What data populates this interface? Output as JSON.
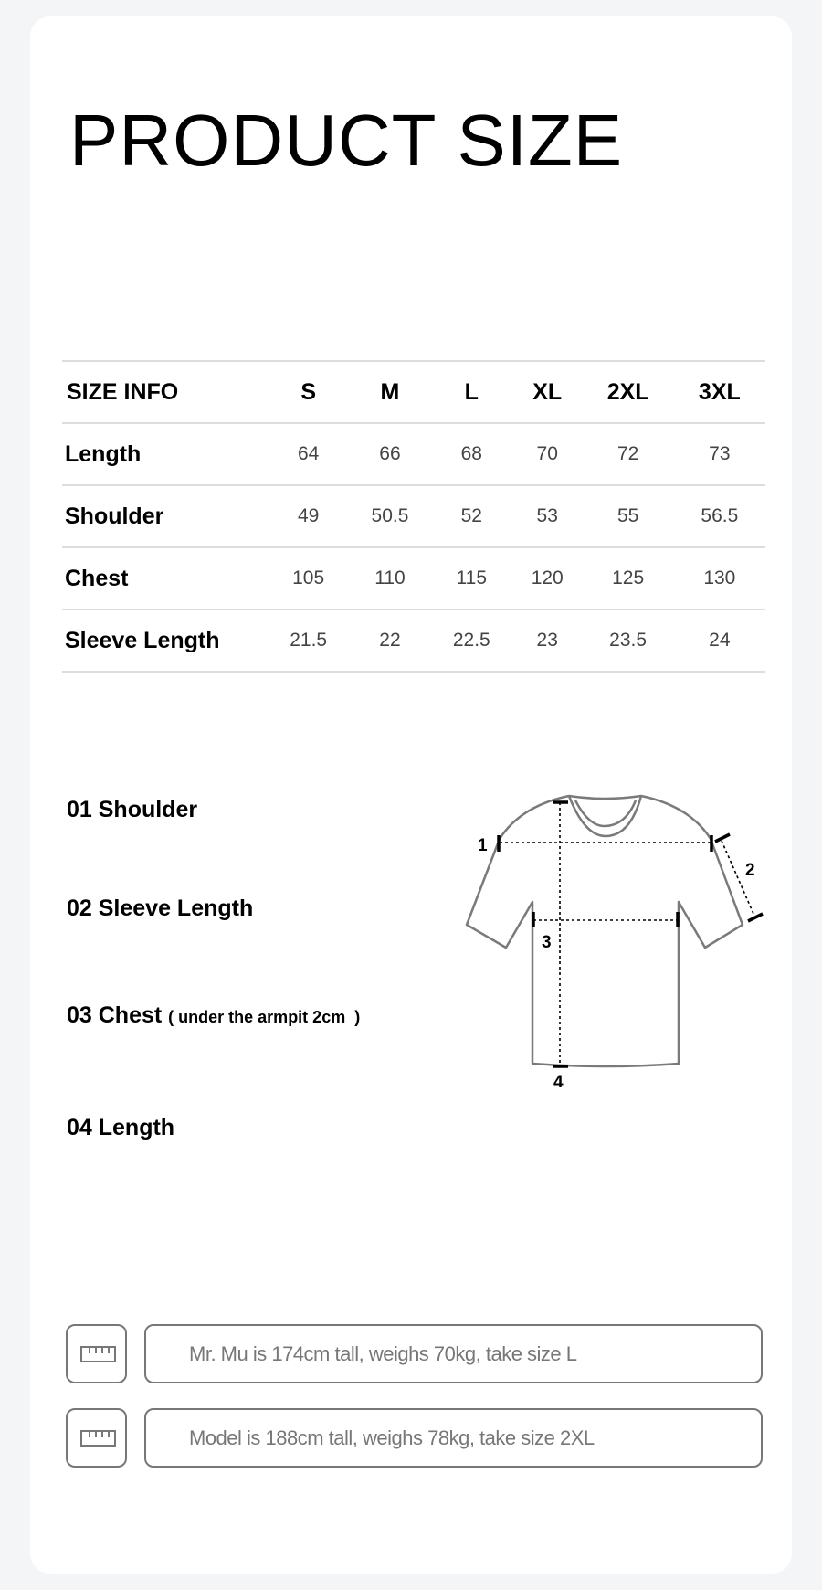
{
  "title": "PRODUCT SIZE",
  "size_table": {
    "headers": [
      "SIZE INFO",
      "S",
      "M",
      "L",
      "XL",
      "2XL",
      "3XL"
    ],
    "rows": [
      {
        "label": "Length",
        "values": [
          "64",
          "66",
          "68",
          "70",
          "72",
          "73"
        ]
      },
      {
        "label": "Shoulder",
        "values": [
          "49",
          "50.5",
          "52",
          "53",
          "55",
          "56.5"
        ]
      },
      {
        "label": "Chest",
        "values": [
          "105",
          "110",
          "115",
          "120",
          "125",
          "130"
        ]
      },
      {
        "label": "Sleeve Length",
        "values": [
          "21.5",
          "22",
          "22.5",
          "23",
          "23.5",
          "24"
        ]
      }
    ]
  },
  "measurements": [
    {
      "label": "01 Shoulder"
    },
    {
      "label": "02 Sleeve Length"
    },
    {
      "label": "03 Chest",
      "note": "( under the armpit 2cm  )"
    },
    {
      "label": "04 Length"
    }
  ],
  "diagram": {
    "markers": [
      "1",
      "2",
      "3",
      "4"
    ]
  },
  "models": [
    {
      "icon": "ruler-icon",
      "text": "Mr. Mu is 174cm tall, weighs 70kg, take size L"
    },
    {
      "icon": "ruler-icon",
      "text": "Model is 188cm tall, weighs 78kg, take size 2XL"
    }
  ],
  "colors": {
    "background": "#f4f5f7",
    "card": "#ffffff",
    "outline": "#777777"
  }
}
